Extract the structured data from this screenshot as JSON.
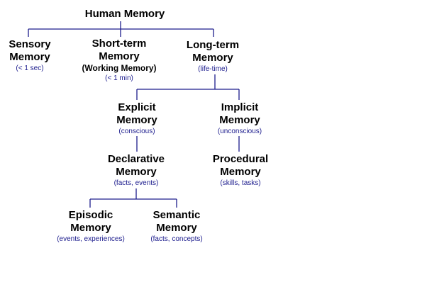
{
  "colors": {
    "connector": "#1c1c8c",
    "note_text": "#1a1a8c",
    "title_text": "#000000"
  },
  "nodes": {
    "human_memory": {
      "title": "Human Memory"
    },
    "sensory": {
      "title_1": "Sensory",
      "title_2": "Memory",
      "note": "(< 1 sec)"
    },
    "short_term": {
      "title_1": "Short-term",
      "title_2": "Memory",
      "subtitle": "(Working Memory)",
      "note": "(< 1 min)"
    },
    "long_term": {
      "title_1": "Long-term",
      "title_2": "Memory",
      "note": "(life-time)"
    },
    "explicit": {
      "title_1": "Explicit",
      "title_2": "Memory",
      "note": "(conscious)"
    },
    "implicit": {
      "title_1": "Implicit",
      "title_2": "Memory",
      "note": "(unconscious)"
    },
    "declarative": {
      "title_1": "Declarative",
      "title_2": "Memory",
      "note": "(facts, events)"
    },
    "procedural": {
      "title_1": "Procedural",
      "title_2": "Memory",
      "note": "(skills, tasks)"
    },
    "episodic": {
      "title_1": "Episodic",
      "title_2": "Memory",
      "note": "(events, experiences)"
    },
    "semantic": {
      "title_1": "Semantic",
      "title_2": "Memory",
      "note": "(facts, concepts)"
    }
  }
}
